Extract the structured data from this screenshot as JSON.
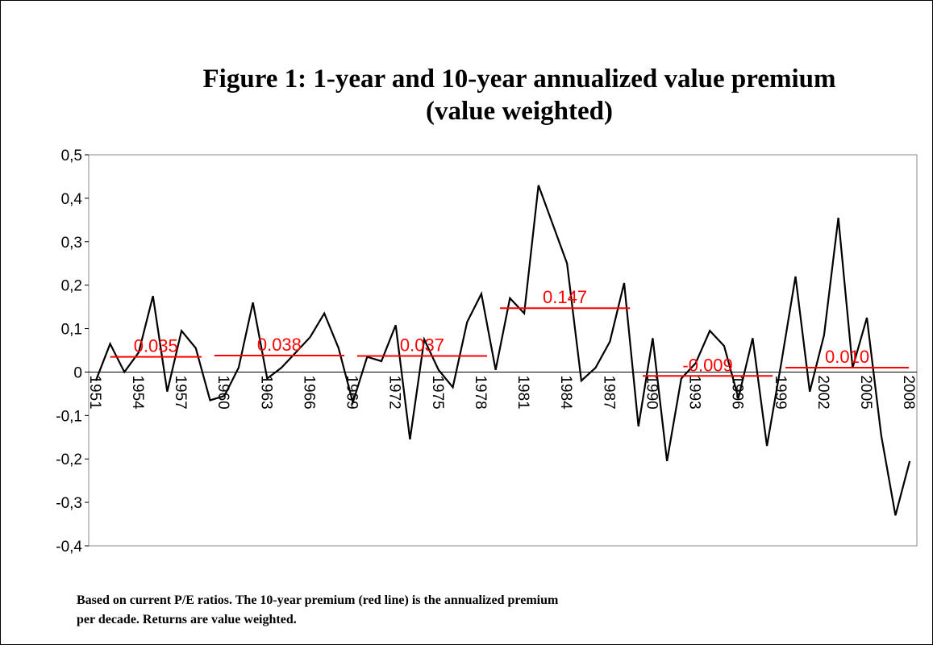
{
  "chart_data": {
    "type": "line",
    "title": [
      "Figure 1: 1-year and 10-year annualized value premium",
      "(value weighted)"
    ],
    "footnote": [
      "Based on current P/E ratios. The 10-year premium (red line) is the annualized premium",
      "per decade. Returns are value weighted."
    ],
    "categories": [
      "1951",
      null,
      null,
      "1954",
      null,
      null,
      "1957",
      null,
      null,
      "1960",
      null,
      null,
      "1963",
      null,
      null,
      "1966",
      null,
      null,
      "1969",
      null,
      null,
      "1972",
      null,
      null,
      "1975",
      null,
      null,
      "1978",
      null,
      null,
      "1981",
      null,
      null,
      "1984",
      null,
      null,
      "1987",
      null,
      null,
      "1990",
      null,
      null,
      "1993",
      null,
      null,
      "1996",
      null,
      null,
      "1999",
      null,
      null,
      "2002",
      null,
      null,
      "2005",
      null,
      null,
      "2008"
    ],
    "values": [
      -0.02,
      0.065,
      0.0,
      0.045,
      0.175,
      -0.045,
      0.095,
      0.055,
      -0.065,
      -0.055,
      0.01,
      0.16,
      -0.015,
      0.01,
      0.045,
      0.08,
      0.135,
      0.055,
      -0.07,
      0.035,
      0.025,
      0.108,
      -0.155,
      0.075,
      0.005,
      -0.035,
      0.115,
      0.18,
      0.005,
      0.17,
      0.135,
      0.43,
      0.34,
      0.25,
      -0.02,
      0.01,
      0.07,
      0.205,
      -0.125,
      0.078,
      -0.205,
      -0.015,
      0.02,
      0.095,
      0.06,
      -0.06,
      0.078,
      -0.17,
      0.02,
      0.22,
      -0.045,
      0.085,
      0.355,
      0.01,
      0.125,
      -0.145,
      -0.33,
      -0.205
    ],
    "color": "#000000",
    "decade_premium": {
      "values": [
        0.035,
        0.038,
        0.037,
        0.147,
        -0.009,
        0.01
      ],
      "value_labels": [
        "0.035",
        "0.038",
        "0.037",
        "0.147",
        "-0.009",
        "0.010"
      ],
      "color": "#ff0000"
    },
    "ylim": [
      -0.4,
      0.5
    ],
    "yticks": [
      {
        "value": 0.5,
        "label": "0,5"
      },
      {
        "value": 0.4,
        "label": "0,4"
      },
      {
        "value": 0.3,
        "label": "0,3"
      },
      {
        "value": 0.2,
        "label": "0,2"
      },
      {
        "value": 0.1,
        "label": "0,1"
      },
      0,
      {
        "value": -0.1,
        "label": "-0,1"
      },
      {
        "value": -0.2,
        "label": "-0,2"
      },
      {
        "value": -0.3,
        "label": "-0,3"
      },
      {
        "value": -0.4,
        "label": "-0,4"
      }
    ]
  }
}
